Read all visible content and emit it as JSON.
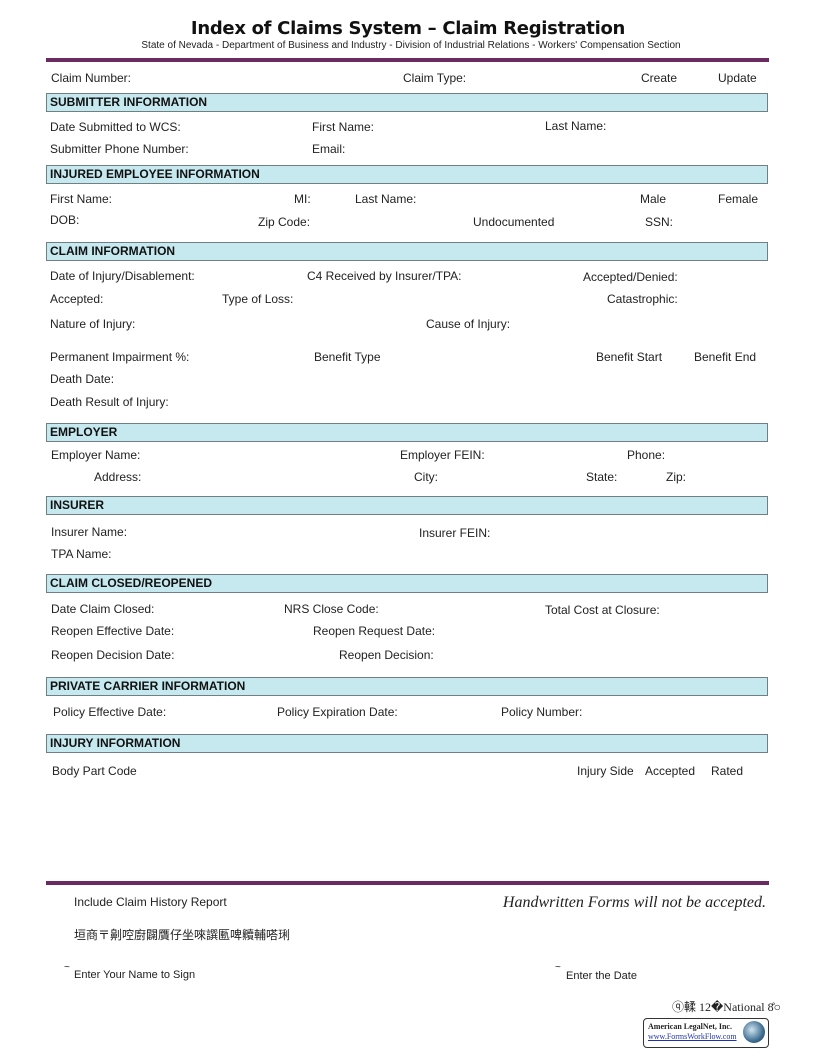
{
  "header": {
    "title": "Index of Claims System – Claim Registration",
    "subtitle": "State of Nevada - Department of Business and Industry - Division of Industrial Relations - Workers' Compensation Section"
  },
  "top": {
    "claim_number": "Claim Number:",
    "claim_type": "Claim Type:",
    "create": "Create",
    "update": "Update"
  },
  "submitter": {
    "heading": "SUBMITTER INFORMATION",
    "date_submitted": "Date Submitted to WCS:",
    "first_name": "First Name:",
    "last_name": "Last Name:",
    "phone": "Submitter Phone Number:",
    "email": "Email:"
  },
  "injured": {
    "heading": "INJURED EMPLOYEE INFORMATION",
    "first_name": "First Name:",
    "mi": "MI:",
    "last_name": "Last Name:",
    "male": "Male",
    "female": "Female",
    "dob": "DOB:",
    "zip": "Zip Code:",
    "undocumented": "Undocumented",
    "ssn": "SSN:"
  },
  "claim": {
    "heading": "CLAIM INFORMATION",
    "date_of_injury": "Date of Injury/Disablement:",
    "c4": "C4 Received by Insurer/TPA:",
    "accepted_denied": "Accepted/Denied:",
    "accepted": "Accepted:",
    "type_of_loss": "Type of Loss:",
    "catastrophic": "Catastrophic:",
    "nature": "Nature of Injury:",
    "cause": "Cause of Injury:",
    "permanent": "Permanent Impairment %:",
    "benefit_type": "Benefit Type",
    "benefit_start": "Benefit Start",
    "benefit_end": "Benefit End",
    "death_date": "Death Date:",
    "death_result": "Death Result of Injury:"
  },
  "employer": {
    "heading": "EMPLOYER",
    "name": "Employer Name:",
    "fein": "Employer FEIN:",
    "phone": "Phone:",
    "address": "Address:",
    "city": "City:",
    "state": "State:",
    "zip": "Zip:"
  },
  "insurer": {
    "heading": "INSURER",
    "name": "Insurer Name:",
    "fein": "Insurer FEIN:",
    "tpa": "TPA Name:"
  },
  "closed": {
    "heading": "CLAIM CLOSED/REOPENED",
    "date_closed": "Date Claim Closed:",
    "nrs": "NRS Close Code:",
    "total_cost": "Total Cost at Closure:",
    "reopen_effective": "Reopen Effective Date:",
    "reopen_request": "Reopen Request Date:",
    "reopen_decision_date": "Reopen Decision Date:",
    "reopen_decision": "Reopen Decision:"
  },
  "carrier": {
    "heading": "PRIVATE CARRIER INFORMATION",
    "policy_effective": "Policy Effective Date:",
    "policy_expiration": "Policy Expiration Date:",
    "policy_number": "Policy Number:"
  },
  "injury": {
    "heading": "INJURY INFORMATION",
    "body_part": "Body Part Code",
    "injury_side": "Injury Side",
    "accepted": "Accepted",
    "rated": "Rated"
  },
  "footer": {
    "include_history": "Include Claim History Report",
    "handwritten": "Handwritten Forms will not be accepted.",
    "garbled": "垣商〒劓啌廚闢贋仔坐唻譔匭啤贕輔嗒琍",
    "tilde": "~",
    "sign": "Enter Your Name to Sign",
    "date": "Enter the Date",
    "stamp": "ⓠ輮  12�National  8̊○",
    "logo_name": "American LegalNet, Inc.",
    "logo_url": "www.FormsWorkFlow.com"
  },
  "colors": {
    "rule": "#6a2b63",
    "section_bg": "#c6e9ef"
  }
}
